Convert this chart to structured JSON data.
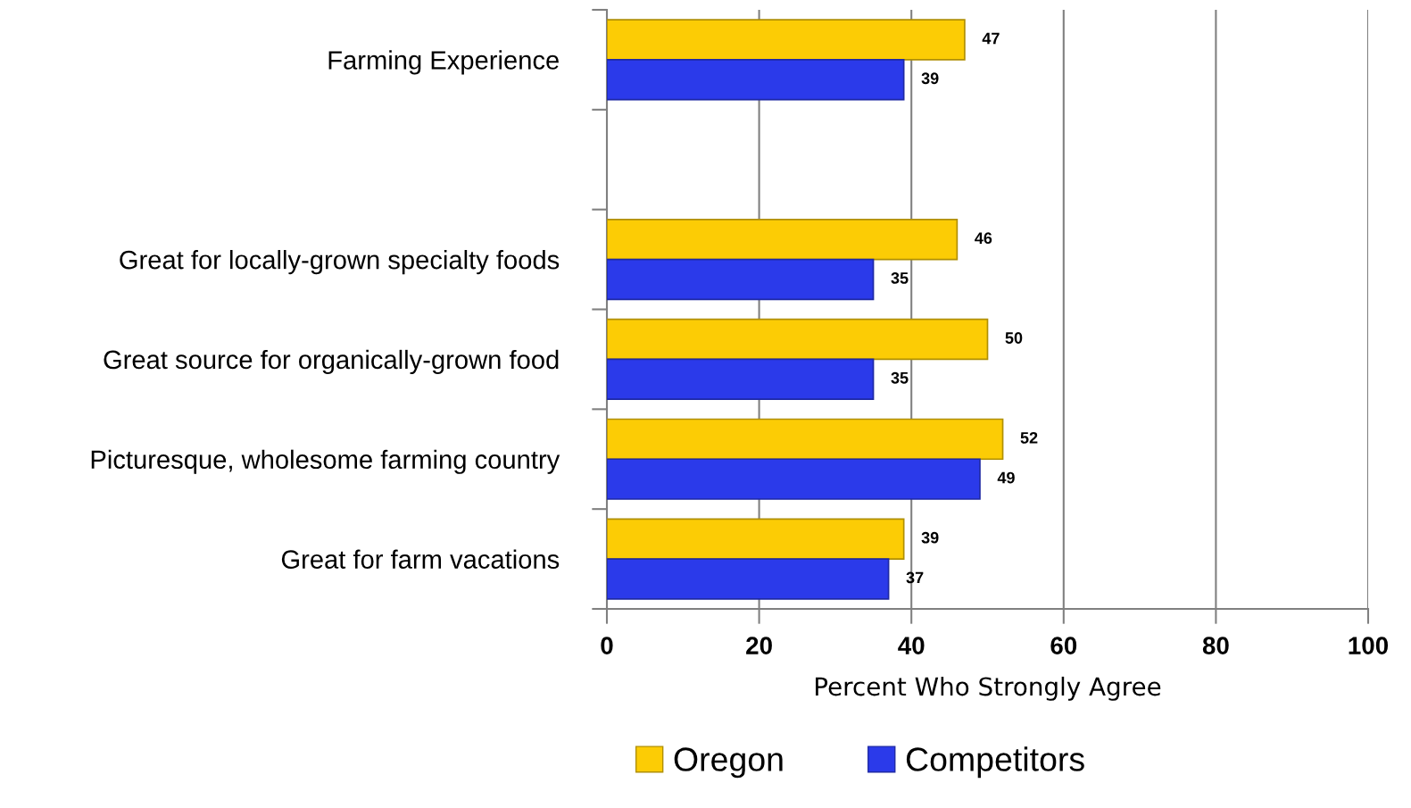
{
  "chart_data": {
    "type": "bar",
    "orientation": "horizontal",
    "categories": [
      "Farming Experience",
      null,
      "Great for locally-grown specialty foods",
      "Great source for organically-grown food",
      "Picturesque, wholesome farming country",
      "Great for farm vacations"
    ],
    "series": [
      {
        "name": "Oregon",
        "color": "#fccc05",
        "values": [
          47,
          null,
          46,
          50,
          52,
          39
        ]
      },
      {
        "name": "Competitors",
        "color": "#2b3aea",
        "values": [
          39,
          null,
          35,
          35,
          49,
          37
        ]
      }
    ],
    "xlabel": "Percent Who Strongly Agree",
    "xlim": [
      0,
      100
    ],
    "xticks": [
      0,
      20,
      40,
      60,
      80,
      100
    ],
    "grid": "x",
    "legend": "bottom",
    "data_labels": true
  }
}
